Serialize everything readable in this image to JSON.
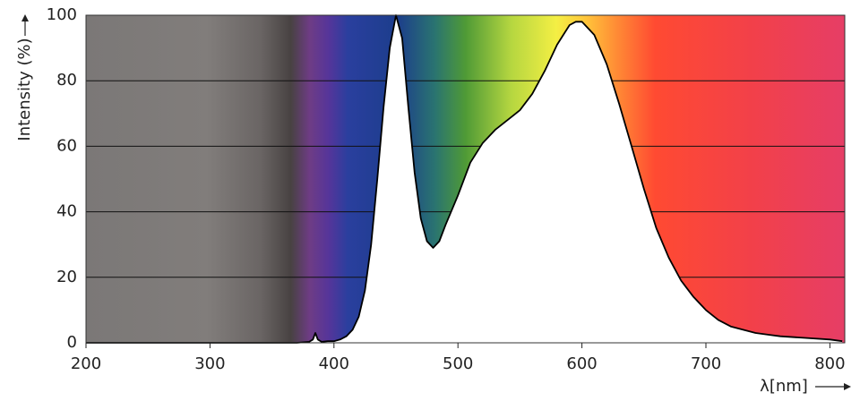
{
  "chart_data": {
    "type": "area",
    "y_label": "Intensity (%)",
    "x_label": "λ[nm]",
    "x": [
      200,
      300,
      350,
      370,
      380,
      383,
      385,
      387,
      390,
      395,
      400,
      405,
      410,
      415,
      420,
      425,
      430,
      435,
      440,
      445,
      450,
      455,
      460,
      465,
      470,
      475,
      480,
      485,
      490,
      500,
      510,
      520,
      530,
      540,
      550,
      560,
      570,
      580,
      590,
      595,
      600,
      610,
      620,
      630,
      640,
      650,
      660,
      670,
      680,
      690,
      700,
      710,
      720,
      730,
      740,
      750,
      760,
      780,
      800,
      810
    ],
    "values": [
      0,
      0,
      0,
      0,
      0.3,
      1,
      3,
      1,
      0.3,
      0.5,
      0.5,
      1,
      2,
      4,
      8,
      16,
      30,
      50,
      72,
      90,
      100,
      93,
      72,
      52,
      38,
      31,
      29,
      31,
      36,
      45,
      55,
      61,
      65,
      68,
      71,
      76,
      83,
      91,
      97,
      98,
      98,
      94,
      85,
      73,
      60,
      47,
      35,
      26,
      19,
      14,
      10,
      7,
      5,
      4,
      3,
      2.5,
      2,
      1.5,
      1,
      0.5
    ],
    "color": "#000000",
    "fill": "#ffffff",
    "xlim": [
      200,
      812
    ],
    "ylim": [
      0,
      100
    ],
    "xticks": [
      200,
      300,
      400,
      500,
      600,
      700,
      800
    ],
    "yticks": [
      0,
      20,
      40,
      60,
      80,
      100
    ],
    "grid": true
  }
}
